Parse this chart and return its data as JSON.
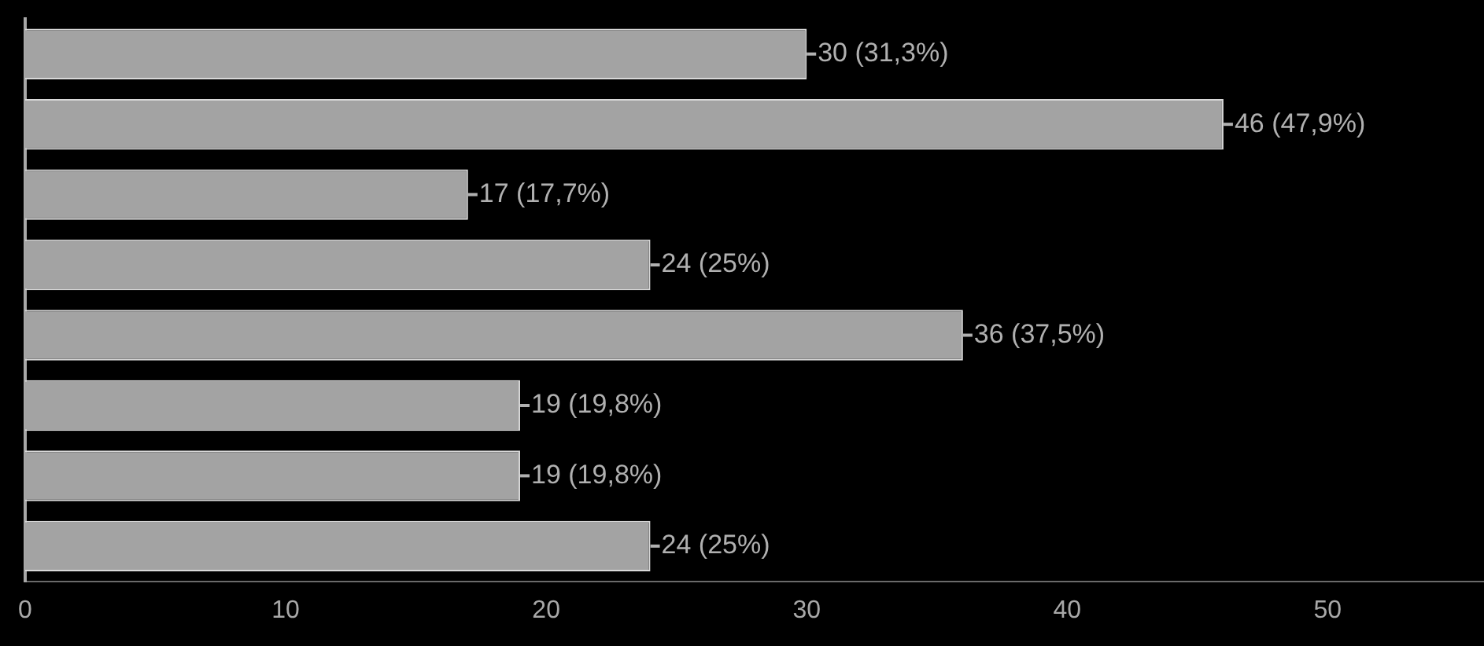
{
  "chart_data": {
    "type": "bar",
    "orientation": "horizontal",
    "categories": [
      null,
      null,
      null,
      null,
      null,
      null,
      null,
      null
    ],
    "values": [
      30,
      46,
      17,
      24,
      36,
      19,
      19,
      24
    ],
    "value_labels": [
      "30 (31,3%)",
      "46 (47,9%)",
      "17 (17,7%)",
      "24 (25%)",
      "36 (37,5%)",
      "19 (19,8%)",
      "19 (19,8%)",
      "24 (25%)"
    ],
    "color": "#a3a3a3",
    "xlim": [
      0,
      56
    ],
    "xticks": [
      0,
      10,
      20,
      30,
      40,
      50
    ],
    "grid": false,
    "legend": false
  }
}
